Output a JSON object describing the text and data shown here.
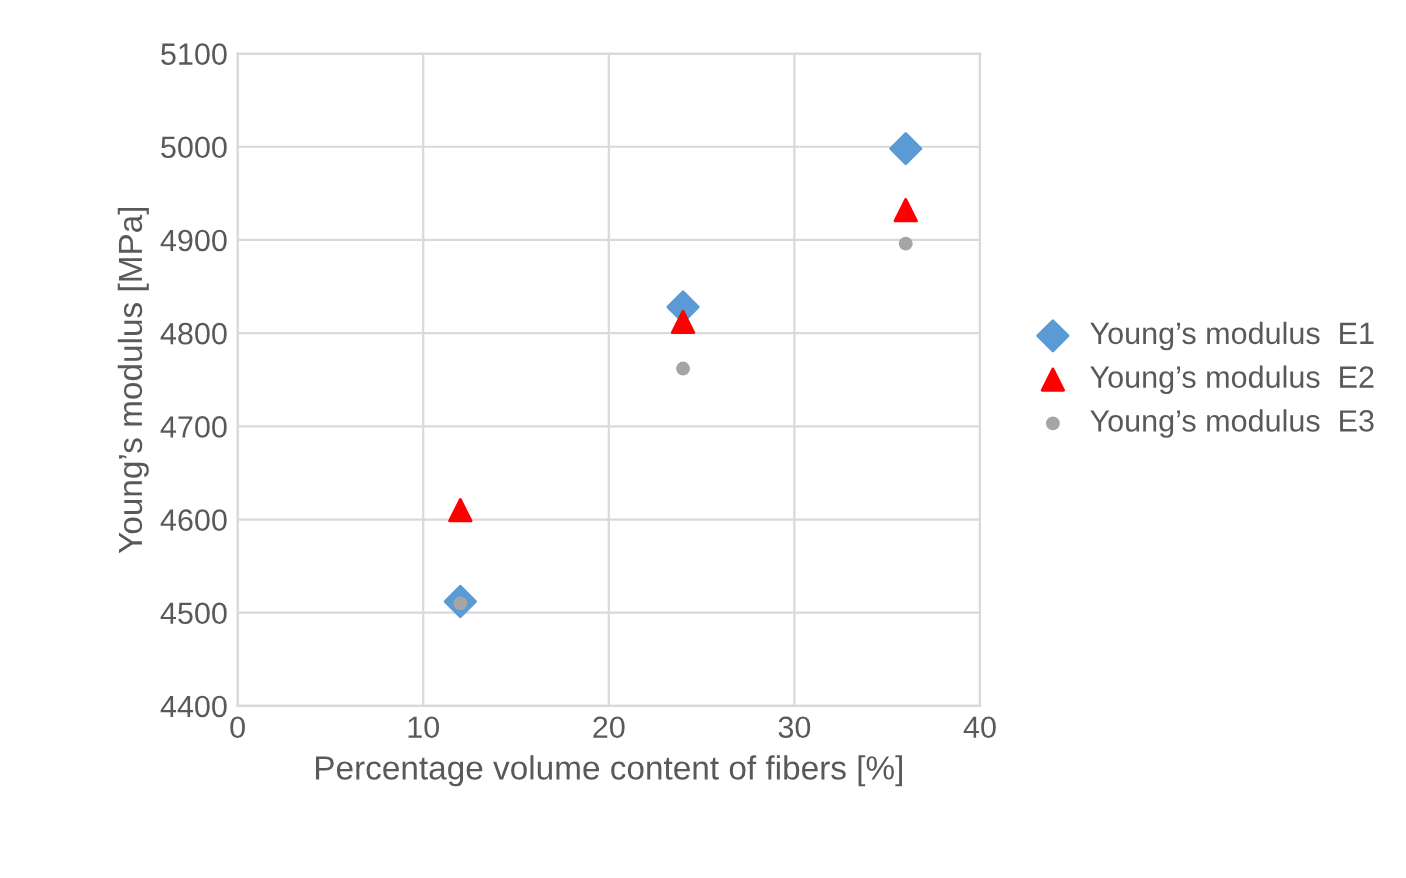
{
  "chart_data": {
    "type": "scatter",
    "xlabel": "Percentage volume content of fibers [%]",
    "ylabel": "Young’s modulus [MPa]",
    "x": [
      12,
      24,
      36
    ],
    "series": [
      {
        "name": "Young’s modulus  E1",
        "color": "#5b9bd5",
        "marker": "diamond",
        "values": [
          4512,
          4828,
          4998
        ]
      },
      {
        "name": "Young’s modulus  E2",
        "color": "#ff0000",
        "marker": "triangle",
        "values": [
          4610,
          4812,
          4932
        ]
      },
      {
        "name": "Young’s modulus  E3",
        "color": "#a5a5a5",
        "marker": "circle",
        "values": [
          4510,
          4762,
          4896
        ]
      }
    ],
    "xlim": [
      0,
      40
    ],
    "xticks": [
      0,
      10,
      20,
      30,
      40
    ],
    "ylim": [
      4400,
      5100
    ],
    "yticks": [
      4400,
      4500,
      4600,
      4700,
      4800,
      4900,
      5000,
      5100
    ],
    "grid": true,
    "legend": "right"
  }
}
